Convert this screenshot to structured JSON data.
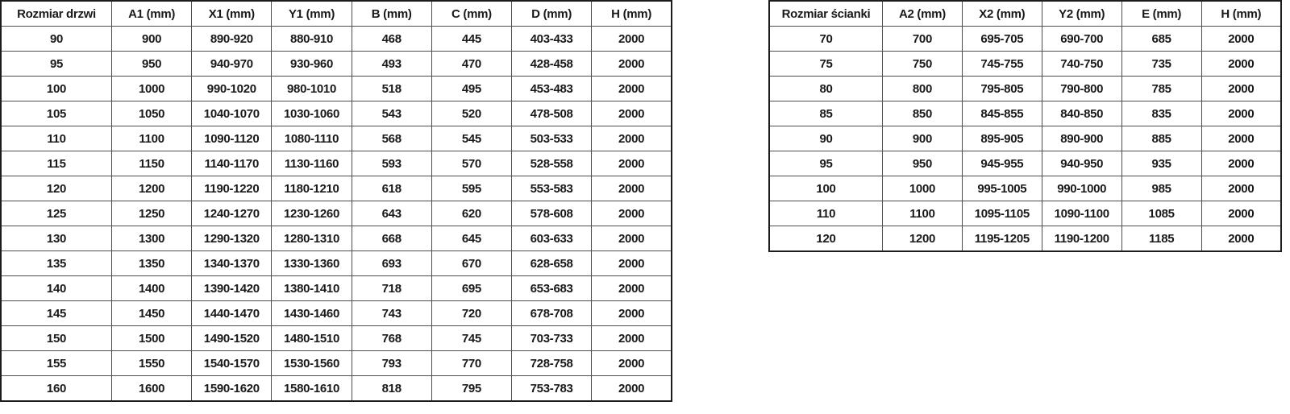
{
  "chart_data": [
    {
      "type": "table",
      "name": "door-sizes",
      "headers": [
        "Rozmiar drzwi",
        "A1 (mm)",
        "X1 (mm)",
        "Y1 (mm)",
        "B (mm)",
        "C (mm)",
        "D (mm)",
        "H (mm)"
      ],
      "rows": [
        [
          "90",
          "900",
          "890-920",
          "880-910",
          "468",
          "445",
          "403-433",
          "2000"
        ],
        [
          "95",
          "950",
          "940-970",
          "930-960",
          "493",
          "470",
          "428-458",
          "2000"
        ],
        [
          "100",
          "1000",
          "990-1020",
          "980-1010",
          "518",
          "495",
          "453-483",
          "2000"
        ],
        [
          "105",
          "1050",
          "1040-1070",
          "1030-1060",
          "543",
          "520",
          "478-508",
          "2000"
        ],
        [
          "110",
          "1100",
          "1090-1120",
          "1080-1110",
          "568",
          "545",
          "503-533",
          "2000"
        ],
        [
          "115",
          "1150",
          "1140-1170",
          "1130-1160",
          "593",
          "570",
          "528-558",
          "2000"
        ],
        [
          "120",
          "1200",
          "1190-1220",
          "1180-1210",
          "618",
          "595",
          "553-583",
          "2000"
        ],
        [
          "125",
          "1250",
          "1240-1270",
          "1230-1260",
          "643",
          "620",
          "578-608",
          "2000"
        ],
        [
          "130",
          "1300",
          "1290-1320",
          "1280-1310",
          "668",
          "645",
          "603-633",
          "2000"
        ],
        [
          "135",
          "1350",
          "1340-1370",
          "1330-1360",
          "693",
          "670",
          "628-658",
          "2000"
        ],
        [
          "140",
          "1400",
          "1390-1420",
          "1380-1410",
          "718",
          "695",
          "653-683",
          "2000"
        ],
        [
          "145",
          "1450",
          "1440-1470",
          "1430-1460",
          "743",
          "720",
          "678-708",
          "2000"
        ],
        [
          "150",
          "1500",
          "1490-1520",
          "1480-1510",
          "768",
          "745",
          "703-733",
          "2000"
        ],
        [
          "155",
          "1550",
          "1540-1570",
          "1530-1560",
          "793",
          "770",
          "728-758",
          "2000"
        ],
        [
          "160",
          "1600",
          "1590-1620",
          "1580-1610",
          "818",
          "795",
          "753-783",
          "2000"
        ]
      ]
    },
    {
      "type": "table",
      "name": "wall-sizes",
      "headers": [
        "Rozmiar ścianki",
        "A2 (mm)",
        "X2 (mm)",
        "Y2 (mm)",
        "E (mm)",
        "H (mm)"
      ],
      "rows": [
        [
          "70",
          "700",
          "695-705",
          "690-700",
          "685",
          "2000"
        ],
        [
          "75",
          "750",
          "745-755",
          "740-750",
          "735",
          "2000"
        ],
        [
          "80",
          "800",
          "795-805",
          "790-800",
          "785",
          "2000"
        ],
        [
          "85",
          "850",
          "845-855",
          "840-850",
          "835",
          "2000"
        ],
        [
          "90",
          "900",
          "895-905",
          "890-900",
          "885",
          "2000"
        ],
        [
          "95",
          "950",
          "945-955",
          "940-950",
          "935",
          "2000"
        ],
        [
          "100",
          "1000",
          "995-1005",
          "990-1000",
          "985",
          "2000"
        ],
        [
          "110",
          "1100",
          "1095-1105",
          "1090-1100",
          "1085",
          "2000"
        ],
        [
          "120",
          "1200",
          "1195-1205",
          "1190-1200",
          "1185",
          "2000"
        ]
      ]
    }
  ],
  "colors": {
    "background": "#ffffff",
    "text": "#191919",
    "inner_border": "#4d4d4d",
    "outer_border": "#1c1c1c"
  }
}
